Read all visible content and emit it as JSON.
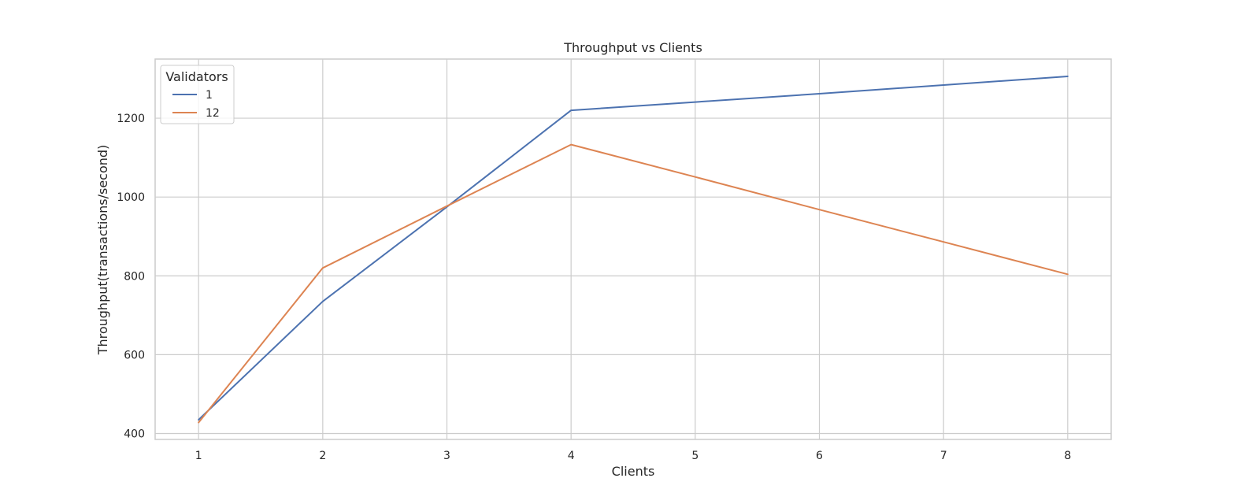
{
  "chart_data": {
    "type": "line",
    "title": "Throughput vs Clients",
    "xlabel": "Clients",
    "ylabel": "Throughput(transactions/second)",
    "x": [
      1,
      2,
      3,
      4,
      5,
      6,
      7,
      8
    ],
    "x_ticks": [
      "1",
      "2",
      "3",
      "4",
      "5",
      "6",
      "7",
      "8"
    ],
    "y_ticks": [
      "400",
      "600",
      "800",
      "1000",
      "1200"
    ],
    "xlim": [
      0.65,
      8.35
    ],
    "ylim": [
      385,
      1350
    ],
    "grid": true,
    "legend": {
      "title": "Validators",
      "placement": "top-left"
    },
    "series": [
      {
        "name": "1",
        "color": "#4c72b0",
        "values": [
          435,
          735,
          975,
          1220,
          1241,
          1262,
          1284,
          1306
        ]
      },
      {
        "name": "12",
        "color": "#dd8452",
        "values": [
          428,
          820,
          977,
          1133,
          1051,
          968,
          886,
          804
        ]
      }
    ]
  }
}
